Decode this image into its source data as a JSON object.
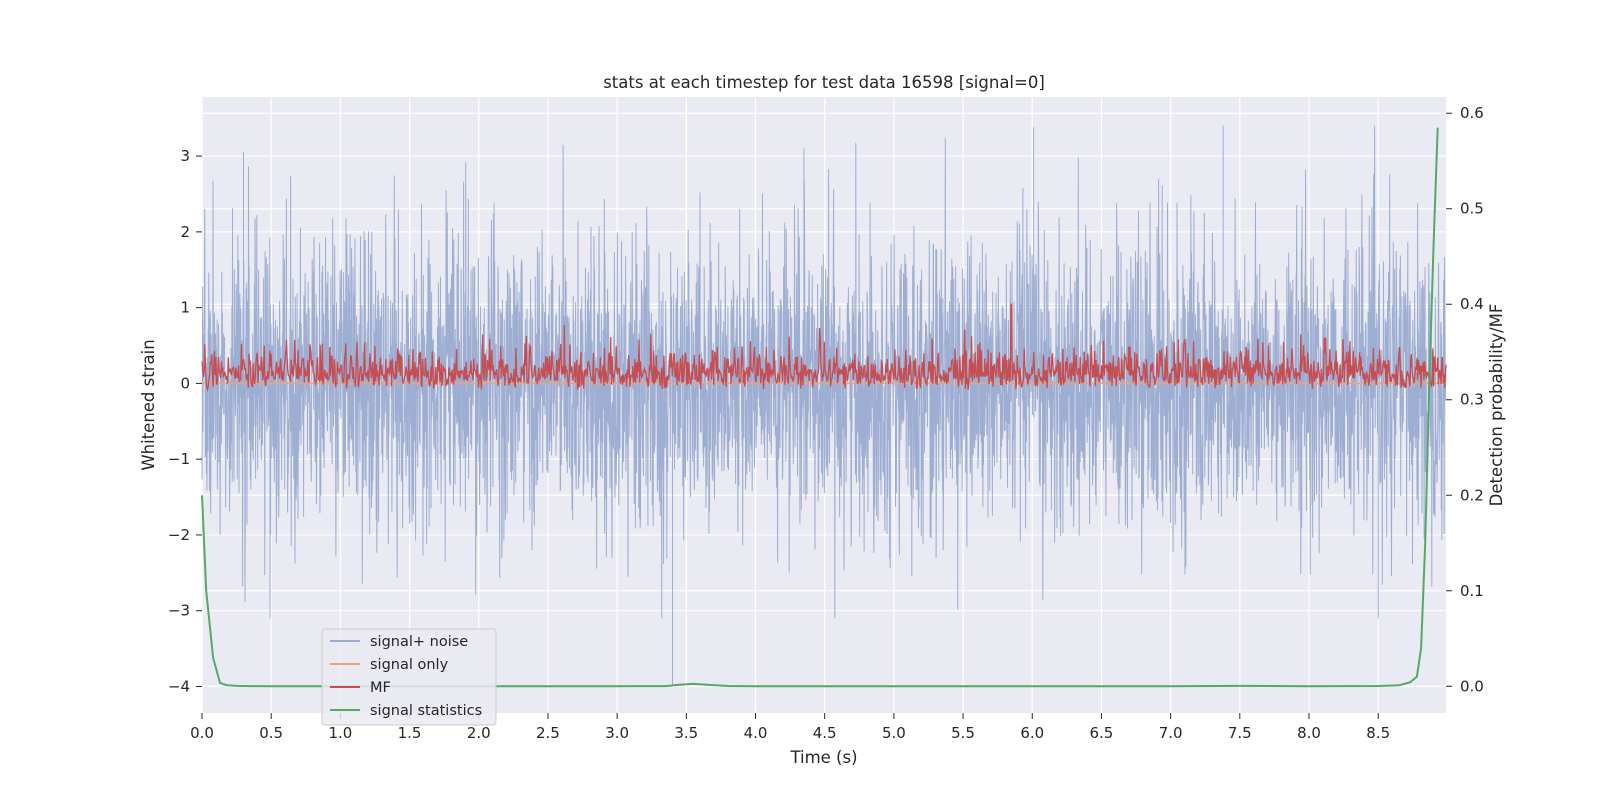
{
  "chart_data": {
    "type": "line",
    "title": "stats at each timestep for test data 16598 [signal=0]",
    "xlabel": "Time (s)",
    "ylabel": "Whitened strain",
    "y2label": "Detection probability/MF",
    "xlim": [
      0,
      8.99
    ],
    "ylim": [
      -4.35,
      3.78
    ],
    "y2lim": [
      -0.028,
      0.617
    ],
    "x_ticks": [
      "0.0",
      "0.5",
      "1.0",
      "1.5",
      "2.0",
      "2.5",
      "3.0",
      "3.5",
      "4.0",
      "4.5",
      "5.0",
      "5.5",
      "6.0",
      "6.5",
      "7.0",
      "7.5",
      "8.0",
      "8.5"
    ],
    "y_ticks": [
      "−4",
      "−3",
      "−2",
      "−1",
      "0",
      "1",
      "2",
      "3"
    ],
    "y2_ticks": [
      "0.0",
      "0.1",
      "0.2",
      "0.3",
      "0.4",
      "0.5",
      "0.6"
    ],
    "grid": true,
    "legend_position": "lower-left",
    "series": [
      {
        "name": "signal+ noise",
        "axis": "left",
        "color": "#9aabd0",
        "description_stats": {
          "sample_rate_hz": 2048,
          "duration_s": 9.0,
          "typical_range": [
            -2.9,
            3.4
          ],
          "notable_extremes": [
            [
              3.4,
              -4.0
            ],
            [
              6.01,
              3.38
            ],
            [
              7.38,
              3.4
            ],
            [
              4.35,
              3.1
            ],
            [
              0.3,
              3.05
            ],
            [
              8.5,
              -3.1
            ]
          ]
        },
        "values_note": "noise-like whitened strain, roughly symmetric about 0"
      },
      {
        "name": "signal only",
        "axis": "left",
        "color": "#e9a283",
        "x": [
          0,
          8.99
        ],
        "y": [
          0,
          0
        ]
      },
      {
        "name": "MF",
        "axis": "right",
        "color": "#c44e52",
        "values_note": "matched-filter output fluctuating between about 0.31 and 0.40 on right axis",
        "range": [
          0.31,
          0.4
        ],
        "peak": [
          5.85,
          0.4
        ]
      },
      {
        "name": "signal statistics",
        "axis": "right",
        "color": "#55a868",
        "x": [
          0.0,
          0.03,
          0.08,
          0.13,
          0.18,
          0.25,
          0.35,
          0.5,
          1.0,
          2.0,
          3.0,
          3.35,
          3.45,
          3.55,
          3.65,
          3.8,
          4.0,
          5.0,
          6.0,
          7.0,
          7.5,
          8.0,
          8.5,
          8.65,
          8.73,
          8.78,
          8.81,
          8.84,
          8.87,
          8.9,
          8.93
        ],
        "y": [
          0.2,
          0.1,
          0.03,
          0.0035,
          0.001,
          0.0004,
          0.0002,
          0.0001,
          0.0001,
          0.0001,
          0.0001,
          0.0002,
          0.0015,
          0.0025,
          0.0015,
          0.0003,
          0.0001,
          0.0001,
          0.0001,
          0.0001,
          0.0004,
          0.0001,
          0.0003,
          0.001,
          0.004,
          0.01,
          0.04,
          0.15,
          0.32,
          0.46,
          0.585
        ]
      }
    ]
  }
}
